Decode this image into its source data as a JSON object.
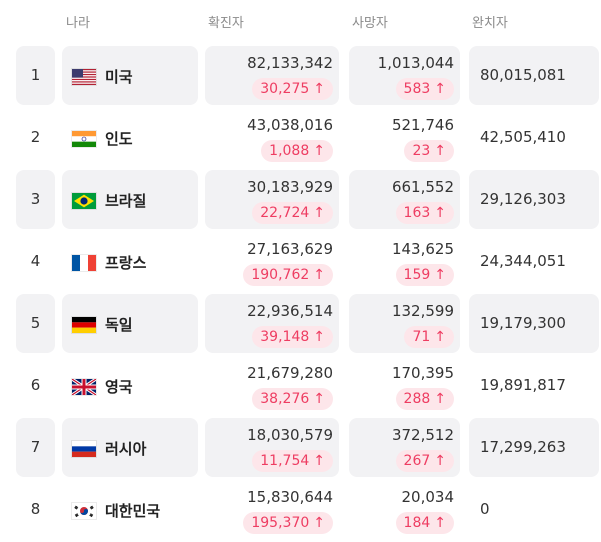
{
  "headers": {
    "country": "나라",
    "confirmed": "확진자",
    "deaths": "사망자",
    "recovered": "완치자"
  },
  "up_arrow": "↑",
  "rows": [
    {
      "rank": "1",
      "country": "미국",
      "flag": "flag-us-icon",
      "confirmed": "82,133,342",
      "confirmed_new": "30,275",
      "deaths": "1,013,044",
      "deaths_new": "583",
      "recovered": "80,015,081"
    },
    {
      "rank": "2",
      "country": "인도",
      "flag": "flag-in-icon",
      "confirmed": "43,038,016",
      "confirmed_new": "1,088",
      "deaths": "521,746",
      "deaths_new": "23",
      "recovered": "42,505,410"
    },
    {
      "rank": "3",
      "country": "브라질",
      "flag": "flag-br-icon",
      "confirmed": "30,183,929",
      "confirmed_new": "22,724",
      "deaths": "661,552",
      "deaths_new": "163",
      "recovered": "29,126,303"
    },
    {
      "rank": "4",
      "country": "프랑스",
      "flag": "flag-fr-icon",
      "confirmed": "27,163,629",
      "confirmed_new": "190,762",
      "deaths": "143,625",
      "deaths_new": "159",
      "recovered": "24,344,051"
    },
    {
      "rank": "5",
      "country": "독일",
      "flag": "flag-de-icon",
      "confirmed": "22,936,514",
      "confirmed_new": "39,148",
      "deaths": "132,599",
      "deaths_new": "71",
      "recovered": "19,179,300"
    },
    {
      "rank": "6",
      "country": "영국",
      "flag": "flag-gb-icon",
      "confirmed": "21,679,280",
      "confirmed_new": "38,276",
      "deaths": "170,395",
      "deaths_new": "288",
      "recovered": "19,891,817"
    },
    {
      "rank": "7",
      "country": "러시아",
      "flag": "flag-ru-icon",
      "confirmed": "18,030,579",
      "confirmed_new": "11,754",
      "deaths": "372,512",
      "deaths_new": "267",
      "recovered": "17,299,263"
    },
    {
      "rank": "8",
      "country": "대한민국",
      "flag": "flag-kr-icon",
      "confirmed": "15,830,644",
      "confirmed_new": "195,370",
      "deaths": "20,034",
      "deaths_new": "184",
      "recovered": "0"
    }
  ],
  "colors": {
    "row_shade": "#f2f2f4",
    "badge_bg": "#fde6ea",
    "badge_text": "#ee3d62",
    "header_text": "#8a8a8a"
  }
}
